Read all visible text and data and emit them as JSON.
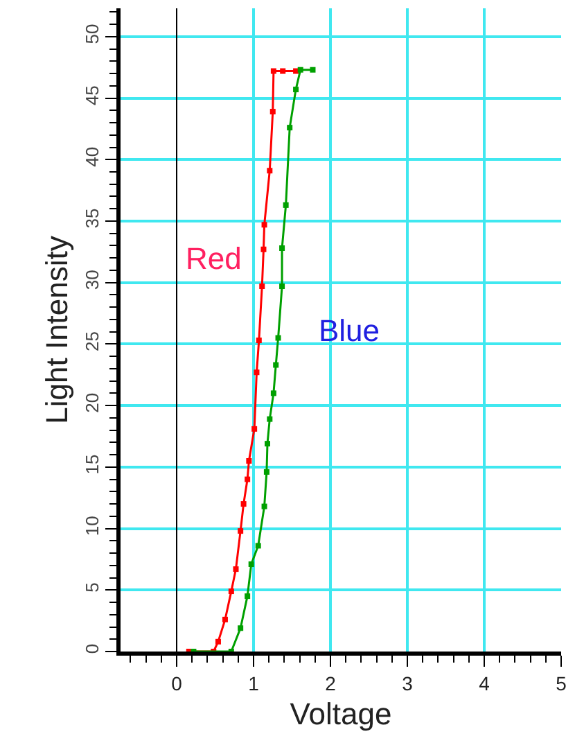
{
  "chart_data": {
    "type": "line",
    "xlabel": "Voltage",
    "ylabel": "Light Intensity",
    "xlim": [
      -0.73,
      5.0
    ],
    "ylim": [
      0,
      52.3
    ],
    "xticks": [
      0,
      1,
      2,
      3,
      4,
      5
    ],
    "yticks": [
      0,
      5,
      10,
      15,
      20,
      25,
      30,
      35,
      40,
      45,
      50
    ],
    "grid": true,
    "marker": "square",
    "line_style": "solid",
    "series": [
      {
        "color": "#ff0000",
        "x": [
          0.16,
          0.48,
          0.54,
          0.63,
          0.71,
          0.77,
          0.83,
          0.87,
          0.92,
          0.94,
          1.01,
          1.04,
          1.07,
          1.11,
          1.13,
          1.14,
          1.21,
          1.25,
          1.26,
          1.38,
          1.55
        ],
        "values": [
          0,
          0,
          0.8,
          2.6,
          4.9,
          6.7,
          9.8,
          12,
          14,
          15.5,
          18.1,
          22.7,
          25.3,
          29.7,
          32.7,
          34.7,
          39.1,
          43.9,
          47.2,
          47.2,
          47.2
        ]
      },
      {
        "color": "#00a000",
        "x": [
          0.22,
          0.71,
          0.83,
          0.92,
          0.97,
          1.06,
          1.14,
          1.17,
          1.18,
          1.21,
          1.26,
          1.29,
          1.32,
          1.37,
          1.37,
          1.42,
          1.47,
          1.55,
          1.61,
          1.77
        ],
        "values": [
          0,
          0,
          1.9,
          4.5,
          7.1,
          8.6,
          11.8,
          14.6,
          16.9,
          18.9,
          21,
          23.3,
          25.5,
          29.7,
          32.8,
          36.3,
          42.6,
          45.7,
          47.3,
          47.3
        ]
      }
    ],
    "annotations": [
      "Red",
      "Blue"
    ]
  }
}
